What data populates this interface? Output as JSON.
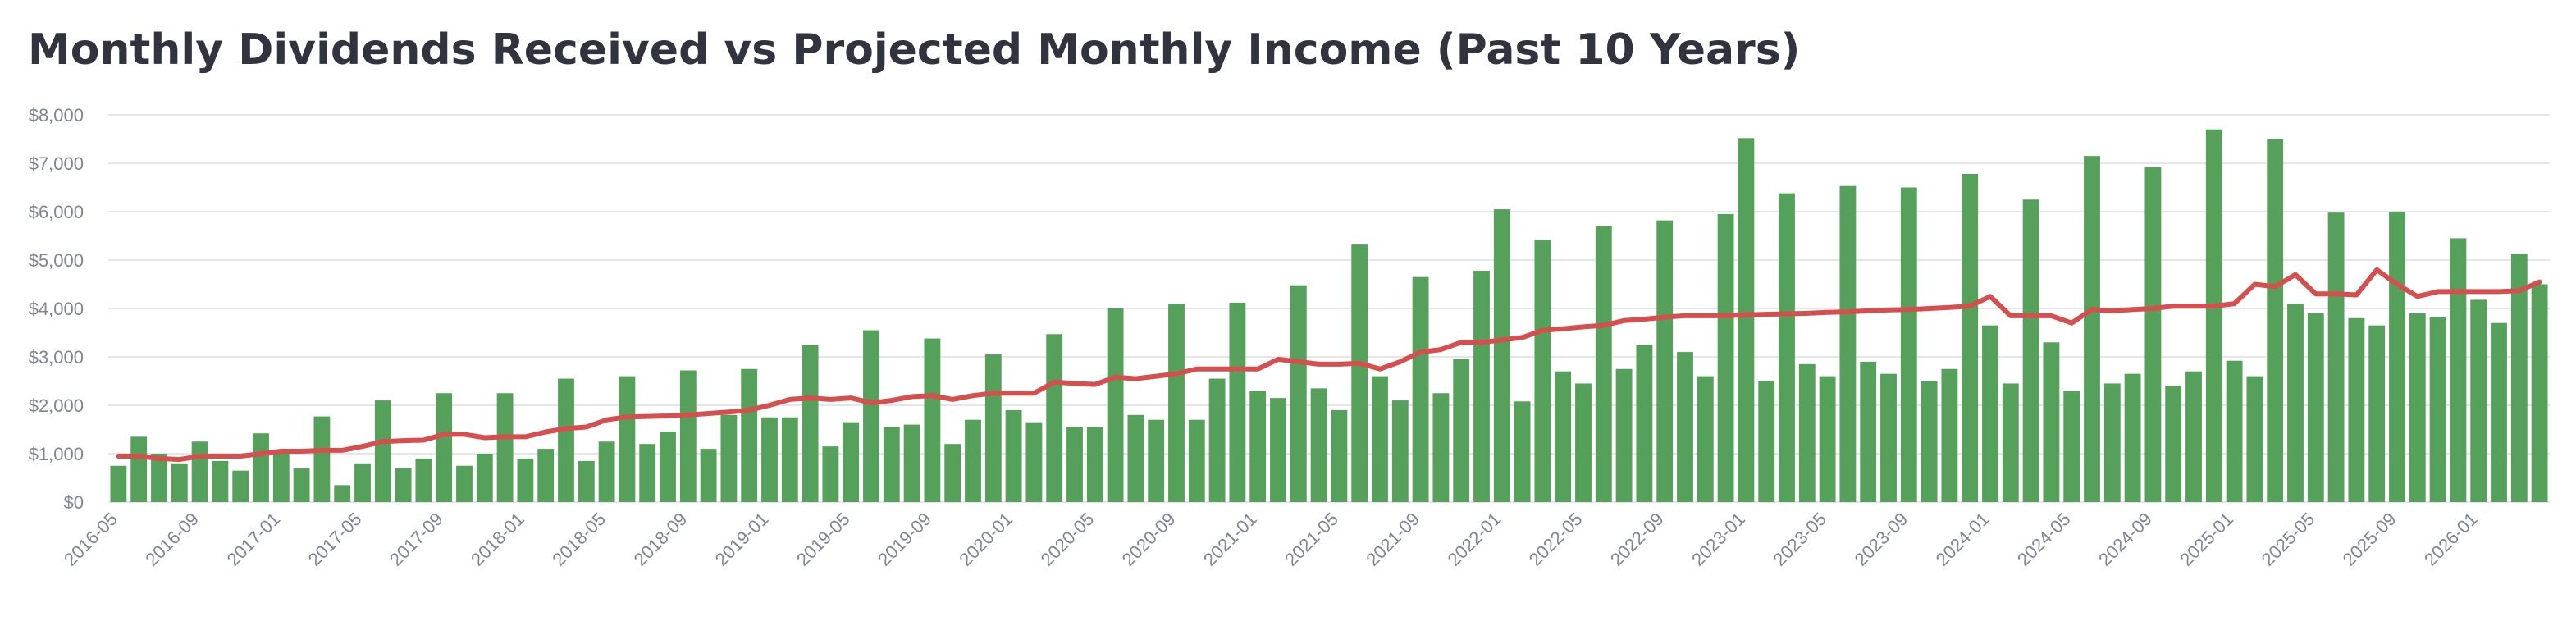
{
  "chart_data": {
    "type": "bar",
    "title": "Monthly Dividends Received vs Projected Monthly Income (Past 10 Years)",
    "categories": [
      "2016-05",
      null,
      null,
      null,
      "2016-09",
      null,
      null,
      null,
      "2017-01",
      null,
      null,
      null,
      "2017-05",
      null,
      null,
      null,
      "2017-09",
      null,
      null,
      null,
      "2018-01",
      null,
      null,
      null,
      "2018-05",
      null,
      null,
      null,
      "2018-09",
      null,
      null,
      null,
      "2019-01",
      null,
      null,
      null,
      "2019-05",
      null,
      null,
      null,
      "2019-09",
      null,
      null,
      null,
      "2020-01",
      null,
      null,
      null,
      "2020-05",
      null,
      null,
      null,
      "2020-09",
      null,
      null,
      null,
      "2021-01",
      null,
      null,
      null,
      "2021-05",
      null,
      null,
      null,
      "2021-09",
      null,
      null,
      null,
      "2022-01",
      null,
      null,
      null,
      "2022-05",
      null,
      null,
      null,
      "2022-09",
      null,
      null,
      null,
      "2023-01",
      null,
      null,
      null,
      "2023-05",
      null,
      null,
      null,
      "2023-09",
      null,
      null,
      null,
      "2024-01",
      null,
      null,
      null,
      "2024-05",
      null,
      null,
      null,
      "2024-09",
      null,
      null,
      null,
      "2025-01",
      null,
      null,
      null,
      "2025-05",
      null,
      null,
      null,
      "2025-09",
      null,
      null,
      null,
      "2026-01",
      null,
      null,
      null
    ],
    "series": [
      {
        "type": "bar",
        "color": "#55a05a",
        "values": [
          750,
          1350,
          1000,
          800,
          1250,
          850,
          650,
          1420,
          1000,
          700,
          1770,
          350,
          800,
          2100,
          700,
          900,
          2250,
          750,
          1000,
          2250,
          900,
          1100,
          2550,
          850,
          1250,
          2600,
          1200,
          1450,
          2720,
          1100,
          1800,
          2750,
          1750,
          1750,
          3250,
          1150,
          1650,
          3550,
          1550,
          1600,
          3380,
          1200,
          1700,
          3050,
          1900,
          1650,
          3470,
          1550,
          1550,
          4000,
          1800,
          1700,
          4100,
          1700,
          2550,
          4120,
          2300,
          2150,
          4480,
          2350,
          1900,
          5320,
          2600,
          2100,
          4650,
          2250,
          2950,
          4780,
          6050,
          2080,
          5420,
          2700,
          2450,
          5700,
          2750,
          3250,
          5820,
          3100,
          2600,
          5950,
          7520,
          2500,
          6380,
          2850,
          2600,
          6530,
          2900,
          2650,
          6500,
          2500,
          2750,
          6780,
          3650,
          2450,
          6250,
          3300,
          2300,
          7150,
          2450,
          2650,
          6920,
          2400,
          2700,
          7700,
          2920,
          2600,
          7500,
          4100,
          3900,
          5980,
          3800,
          3650,
          6000,
          3900,
          3830,
          5450,
          4180,
          3700,
          5130,
          4500
        ]
      },
      {
        "type": "line",
        "color": "#d64f4f",
        "values": [
          950,
          950,
          900,
          880,
          950,
          950,
          950,
          1000,
          1050,
          1050,
          1070,
          1070,
          1150,
          1250,
          1270,
          1280,
          1400,
          1400,
          1330,
          1350,
          1350,
          1450,
          1520,
          1550,
          1700,
          1760,
          1770,
          1780,
          1800,
          1830,
          1860,
          1900,
          2000,
          2120,
          2150,
          2120,
          2150,
          2050,
          2100,
          2180,
          2200,
          2120,
          2200,
          2250,
          2250,
          2250,
          2480,
          2450,
          2430,
          2580,
          2550,
          2600,
          2650,
          2750,
          2750,
          2750,
          2750,
          2950,
          2900,
          2850,
          2850,
          2870,
          2750,
          2900,
          3100,
          3150,
          3300,
          3300,
          3350,
          3400,
          3550,
          3580,
          3620,
          3650,
          3750,
          3780,
          3820,
          3850,
          3850,
          3850,
          3870,
          3880,
          3890,
          3900,
          3920,
          3930,
          3950,
          3970,
          3980,
          4000,
          4020,
          4050,
          4250,
          3850,
          3850,
          3850,
          3700,
          3980,
          3950,
          3980,
          4000,
          4050,
          4050,
          4050,
          4100,
          4500,
          4450,
          4700,
          4300,
          4300,
          4280,
          4800,
          4500,
          4250,
          4350,
          4350,
          4350,
          4350,
          4370,
          4550
        ]
      }
    ],
    "ylim": [
      0,
      8000
    ],
    "yticks": [
      {
        "value": 0,
        "label": "$0"
      },
      {
        "value": 1000,
        "label": "$1,000"
      },
      {
        "value": 2000,
        "label": "$2,000"
      },
      {
        "value": 3000,
        "label": "$3,000"
      },
      {
        "value": 4000,
        "label": "$4,000"
      },
      {
        "value": 5000,
        "label": "$5,000"
      },
      {
        "value": 6000,
        "label": "$6,000"
      },
      {
        "value": 7000,
        "label": "$7,000"
      },
      {
        "value": 8000,
        "label": "$8,000"
      }
    ],
    "grid": true
  }
}
